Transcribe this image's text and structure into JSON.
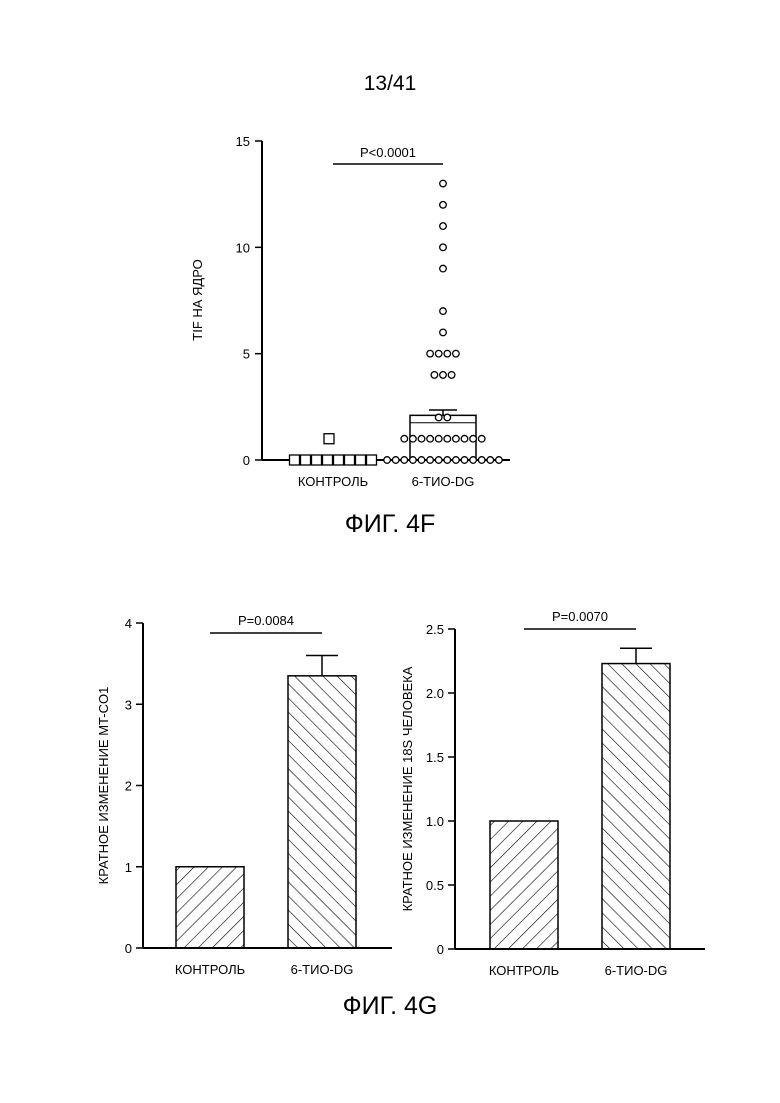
{
  "page": {
    "number": "13/41"
  },
  "captions": {
    "fig4f": "ФИГ. 4F",
    "fig4g": "ФИГ. 4G"
  },
  "chart_data": [
    {
      "type": "scatter",
      "id": "fig4f",
      "ylabel": "TIF НА ЯДРО",
      "ylim": [
        0,
        15
      ],
      "yticks": [
        0,
        5,
        10,
        15
      ],
      "categories": [
        "КОНТРОЛЬ",
        "6-ТИО-DG"
      ],
      "annotation": "P<0.0001",
      "series": [
        {
          "category": "КОНТРОЛЬ",
          "marker": "square",
          "points": [
            0,
            0,
            0,
            0,
            0,
            0,
            0,
            0,
            1
          ],
          "mean": 0.0,
          "sem": 0.0
        },
        {
          "category": "6-ТИО-DG",
          "marker": "circle",
          "points": [
            0,
            0,
            0,
            0,
            0,
            0,
            0,
            0,
            0,
            0,
            0,
            0,
            0,
            0,
            1,
            1,
            1,
            1,
            1,
            1,
            1,
            1,
            1,
            1,
            2,
            2,
            4,
            4,
            4,
            5,
            5,
            5,
            5,
            6,
            7,
            9,
            10,
            11,
            12,
            13
          ],
          "mean": 2.1,
          "sem": 0.25
        }
      ]
    },
    {
      "type": "bar",
      "id": "fig4g-left",
      "ylabel": "КРАТНОЕ ИЗМЕНЕНИЕ MT-CO1",
      "ylim": [
        0,
        4
      ],
      "yticks": [
        "0",
        "1",
        "2",
        "3",
        "4"
      ],
      "categories": [
        "КОНТРОЛЬ",
        "6-ТИО-DG"
      ],
      "values": [
        1.0,
        3.35
      ],
      "errors": [
        0,
        0.25
      ],
      "annotation": "P=0.0084"
    },
    {
      "type": "bar",
      "id": "fig4g-right",
      "ylabel": "КРАТНОЕ ИЗМЕНЕНИЕ 18S ЧЕЛОВЕКА",
      "ylim": [
        0,
        2.5
      ],
      "yticks": [
        "0",
        "0.5",
        "1.0",
        "1.5",
        "2.0",
        "2.5"
      ],
      "categories": [
        "КОНТРОЛЬ",
        "6-ТИО-DG"
      ],
      "values": [
        1.0,
        2.23
      ],
      "errors": [
        0,
        0.12
      ],
      "annotation": "P=0.0070"
    }
  ]
}
